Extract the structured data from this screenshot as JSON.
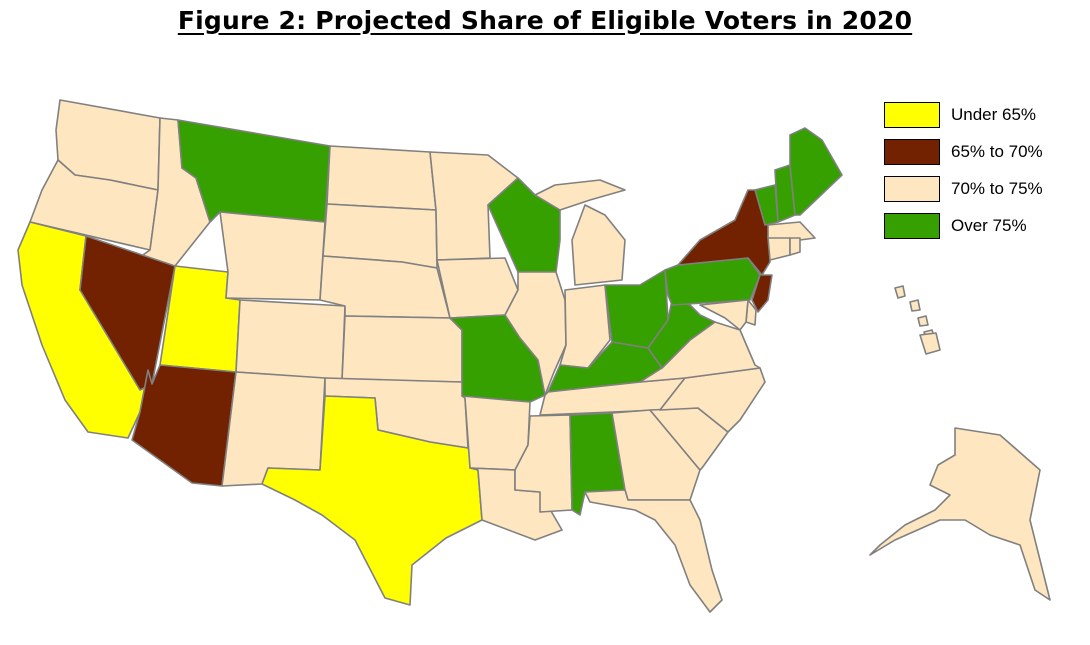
{
  "title": "Figure 2: Projected Share of Eligible Voters in 2020",
  "colors": {
    "under_65": "#ffff00",
    "65_to_70": "#722200",
    "70_to_75": "#fee6c0",
    "over_75": "#35a000",
    "border": "#808080"
  },
  "legend": [
    {
      "label": "Under 65%",
      "category": "under_65"
    },
    {
      "label": "65% to 70%",
      "category": "65_to_70"
    },
    {
      "label": "70% to 75%",
      "category": "70_to_75"
    },
    {
      "label": "Over 75%",
      "category": "over_75"
    }
  ],
  "states": {
    "Washington": "70_to_75",
    "Oregon": "70_to_75",
    "California": "under_65",
    "Idaho": "70_to_75",
    "Nevada": "65_to_70",
    "Utah": "under_65",
    "Arizona": "65_to_70",
    "Montana": "over_75",
    "Wyoming": "70_to_75",
    "Colorado": "70_to_75",
    "New Mexico": "70_to_75",
    "North Dakota": "70_to_75",
    "South Dakota": "70_to_75",
    "Nebraska": "70_to_75",
    "Kansas": "70_to_75",
    "Oklahoma": "70_to_75",
    "Texas": "under_65",
    "Minnesota": "70_to_75",
    "Iowa": "70_to_75",
    "Missouri": "over_75",
    "Arkansas": "70_to_75",
    "Louisiana": "70_to_75",
    "Wisconsin": "over_75",
    "Illinois": "70_to_75",
    "Michigan": "70_to_75",
    "Indiana": "70_to_75",
    "Ohio": "over_75",
    "Kentucky": "over_75",
    "Tennessee": "70_to_75",
    "Mississippi": "70_to_75",
    "Alabama": "over_75",
    "Georgia": "70_to_75",
    "Florida": "70_to_75",
    "South Carolina": "70_to_75",
    "North Carolina": "70_to_75",
    "Virginia": "70_to_75",
    "West Virginia": "over_75",
    "Pennsylvania": "over_75",
    "New York": "65_to_70",
    "New Jersey": "65_to_70",
    "Delaware": "70_to_75",
    "Maryland": "70_to_75",
    "Vermont": "over_75",
    "New Hampshire": "over_75",
    "Maine": "over_75",
    "Massachusetts": "70_to_75",
    "Connecticut": "70_to_75",
    "Rhode Island": "70_to_75",
    "Alaska": "70_to_75",
    "Hawaii": "70_to_75"
  }
}
